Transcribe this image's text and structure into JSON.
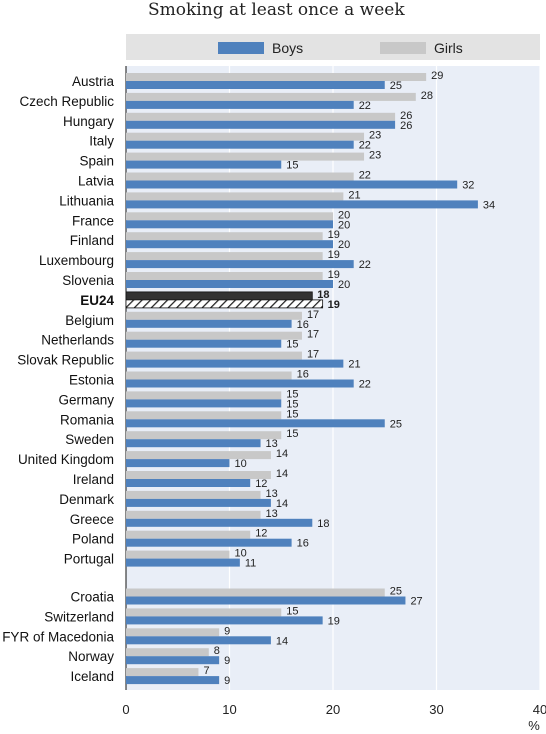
{
  "title": "Smoking at least once a week",
  "legend": {
    "boys": "Boys",
    "girls": "Girls"
  },
  "colors": {
    "boys": "#4f81bd",
    "girls": "#c8c8c8",
    "plot_bg": "#e9eef7",
    "grid": "#ffffff"
  },
  "chart_data": {
    "type": "bar",
    "orientation": "horizontal",
    "title": "Smoking at least once a week",
    "xlabel": "%",
    "xlim": [
      0,
      40
    ],
    "xticks": [
      0,
      10,
      20,
      30,
      40
    ],
    "grid": true,
    "legend_position": "top",
    "categories": [
      "Austria",
      "Czech Republic",
      "Hungary",
      "Italy",
      "Spain",
      "Latvia",
      "Lithuania",
      "France",
      "Finland",
      "Luxembourg",
      "Slovenia",
      "EU24",
      "Belgium",
      "Netherlands",
      "Slovak Republic",
      "Estonia",
      "Germany",
      "Romania",
      "Sweden",
      "United Kingdom",
      "Ireland",
      "Denmark",
      "Greece",
      "Poland",
      "Portugal",
      "Croatia",
      "Switzerland",
      "FYR of Macedonia",
      "Norway",
      "Iceland"
    ],
    "highlight": [
      "EU24"
    ],
    "series": [
      {
        "name": "Girls",
        "values": [
          29,
          28,
          26,
          23,
          23,
          22,
          21,
          20,
          19,
          19,
          19,
          18,
          17,
          17,
          17,
          16,
          15,
          15,
          15,
          14,
          14,
          13,
          13,
          12,
          10,
          25,
          15,
          9,
          8,
          7
        ]
      },
      {
        "name": "Boys",
        "values": [
          25,
          22,
          26,
          22,
          15,
          32,
          34,
          20,
          20,
          22,
          20,
          19,
          16,
          15,
          21,
          22,
          15,
          25,
          13,
          10,
          12,
          14,
          18,
          16,
          11,
          27,
          19,
          14,
          9,
          9
        ]
      }
    ]
  }
}
